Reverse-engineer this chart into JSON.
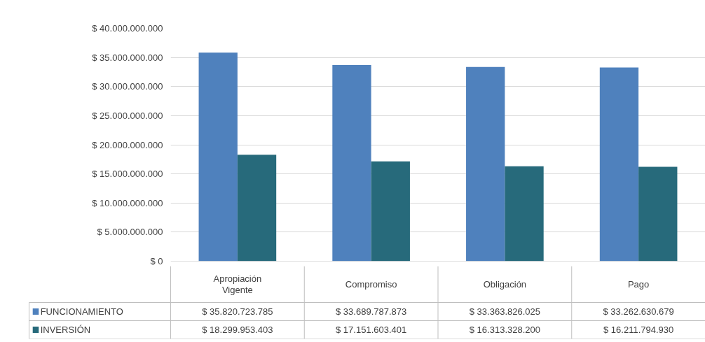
{
  "chart_data": {
    "type": "bar",
    "categories": [
      "Apropiación Vigente",
      "Compromiso",
      "Obligación",
      "Pago"
    ],
    "series": [
      {
        "name": "FUNCIONAMIENTO",
        "color": "#4f81bd",
        "values": [
          35820723785,
          33689787873,
          33363826025,
          33262630679
        ],
        "value_labels": [
          "$ 35.820.723.785",
          "$ 33.689.787.873",
          "$ 33.363.826.025",
          "$ 33.262.630.679"
        ]
      },
      {
        "name": "INVERSIÓN",
        "color": "#276a7b",
        "values": [
          18299953403,
          17151603401,
          16313328200,
          16211794930
        ],
        "value_labels": [
          "$ 18.299.953.403",
          "$ 17.151.603.401",
          "$ 16.313.328.200",
          "$ 16.211.794.930"
        ]
      }
    ],
    "ylim": [
      0,
      40000000000
    ],
    "yticks": [
      {
        "value": 0,
        "label": "$ 0"
      },
      {
        "value": 5000000000,
        "label": "$ 5.000.000.000"
      },
      {
        "value": 10000000000,
        "label": "$ 10.000.000.000"
      },
      {
        "value": 15000000000,
        "label": "$ 15.000.000.000"
      },
      {
        "value": 20000000000,
        "label": "$ 20.000.000.000"
      },
      {
        "value": 25000000000,
        "label": "$ 25.000.000.000"
      },
      {
        "value": 30000000000,
        "label": "$ 30.000.000.000"
      },
      {
        "value": 35000000000,
        "label": "$ 35.000.000.000"
      },
      {
        "value": 40000000000,
        "label": "$ 40.000.000.000"
      }
    ],
    "grid": "y",
    "legend": "bottom"
  }
}
